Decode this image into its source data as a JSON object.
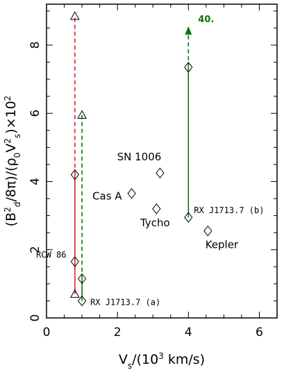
{
  "chart_data": {
    "type": "scatter",
    "xlabel": "V_s/(10^3 km/s)",
    "ylabel": "(B^2_d/8π)/(ρ_0V^2_s)×10^2",
    "xlim": [
      0,
      6.5
    ],
    "ylim": [
      0,
      9.2
    ],
    "xticks": [
      0,
      2,
      4,
      6
    ],
    "yticks": [
      0,
      2,
      4,
      6,
      8
    ],
    "grid": false,
    "points": [
      {
        "name": "SN 1006",
        "x": 3.2,
        "y": 4.25,
        "marker": "diamond"
      },
      {
        "name": "Cas A",
        "x": 2.4,
        "y": 3.65,
        "marker": "diamond"
      },
      {
        "name": "Tycho",
        "x": 3.1,
        "y": 3.2,
        "marker": "diamond"
      },
      {
        "name": "Kepler",
        "x": 4.55,
        "y": 2.55,
        "marker": "diamond"
      },
      {
        "name": "RX J1713.7 (b)",
        "x": 4.0,
        "y": 2.95,
        "marker": "diamond"
      },
      {
        "name": "RX J1713.7 (b) upper",
        "x": 4.0,
        "y": 7.35,
        "marker": "diamond"
      },
      {
        "name": "RCW 86",
        "x": 0.8,
        "y": 1.65,
        "marker": "diamond"
      },
      {
        "name": "RCW 86 mid",
        "x": 0.8,
        "y": 4.2,
        "marker": "diamond"
      },
      {
        "name": "RX J1713.7 (a)",
        "x": 1.0,
        "y": 0.5,
        "marker": "diamond"
      },
      {
        "name": "RX J1713.7 (a) mid",
        "x": 1.0,
        "y": 1.15,
        "marker": "diamond"
      },
      {
        "name": "RCW 86 low triangle",
        "x": 0.8,
        "y": 0.7,
        "marker": "triangle"
      },
      {
        "name": "RCW 86 top triangle",
        "x": 0.8,
        "y": 8.85,
        "marker": "triangle"
      },
      {
        "name": "RX J1713.7 (a) top triangle",
        "x": 1.0,
        "y": 5.95,
        "marker": "triangle"
      }
    ],
    "segments": [
      {
        "x": 0.8,
        "y1": 0.7,
        "y2": 4.2,
        "color": "#e02020",
        "style": "solid"
      },
      {
        "x": 0.8,
        "y1": 4.2,
        "y2": 8.85,
        "color": "#e02020",
        "style": "dashed"
      },
      {
        "x": 1.0,
        "y1": 0.5,
        "y2": 1.15,
        "color": "#107010",
        "style": "solid"
      },
      {
        "x": 1.0,
        "y1": 1.15,
        "y2": 5.95,
        "color": "#107010",
        "style": "dashed"
      },
      {
        "x": 4.0,
        "y1": 2.95,
        "y2": 7.35,
        "color": "#107010",
        "style": "solid"
      },
      {
        "x": 4.0,
        "y1": 7.35,
        "y2": 8.55,
        "color": "#107010",
        "style": "dashed",
        "arrow": true
      }
    ],
    "arrow_label": {
      "text": "40.",
      "x": 4.0,
      "y": 8.55,
      "color": "#107010"
    }
  }
}
